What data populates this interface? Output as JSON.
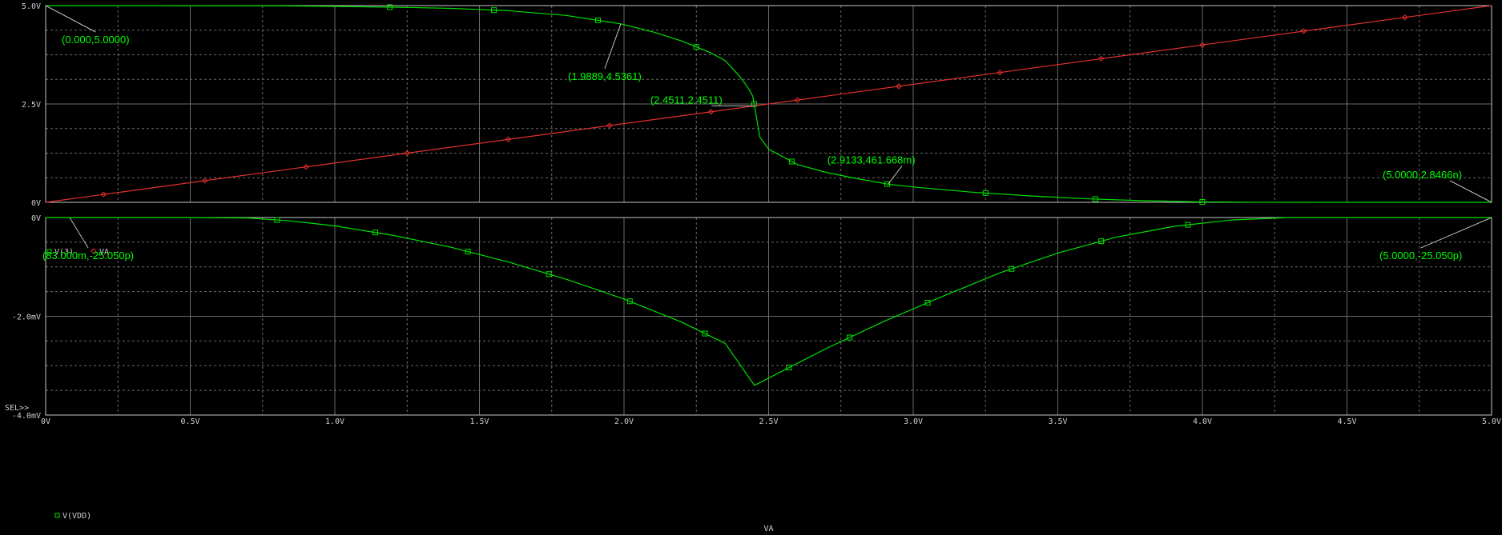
{
  "colors": {
    "background": "#000000",
    "grid": "#6a6a6a",
    "axis": "#c8c8c8",
    "green": "#00e000",
    "red": "#e03030",
    "annotation": "#00ff00"
  },
  "sel_marker": "SEL>>",
  "x_axis": {
    "label": "VA",
    "range": [
      0,
      5
    ],
    "ticks": [
      0,
      0.5,
      1,
      1.5,
      2,
      2.5,
      3,
      3.5,
      4,
      4.5,
      5
    ],
    "tick_labels": [
      "0V",
      "0.5V",
      "1.0V",
      "1.5V",
      "2.0V",
      "2.5V",
      "3.0V",
      "3.5V",
      "4.0V",
      "4.5V",
      "5.0V"
    ]
  },
  "chart_data": [
    {
      "type": "line",
      "ylim": [
        0,
        5
      ],
      "yticks": [
        0,
        2.5,
        5
      ],
      "ytick_labels": [
        "0V",
        "2.5V",
        "5.0V"
      ],
      "legend": "bottom-left",
      "series": [
        {
          "name": "V(3)",
          "marker": "square",
          "color": "#00e000",
          "x": [
            0,
            0.4,
            0.8,
            1.0,
            1.2,
            1.4,
            1.6,
            1.8,
            1.9889,
            2.1,
            2.2,
            2.3,
            2.35,
            2.4,
            2.43,
            2.445,
            2.4511,
            2.47,
            2.5,
            2.6,
            2.7,
            2.8,
            2.9133,
            3.0,
            3.2,
            3.4,
            3.6,
            3.8,
            4.0,
            4.2,
            4.5,
            5.0
          ],
          "y": [
            5.0,
            5.0,
            4.995,
            4.98,
            4.96,
            4.93,
            4.87,
            4.75,
            4.5361,
            4.33,
            4.1,
            3.8,
            3.6,
            3.2,
            2.9,
            2.7,
            2.4511,
            1.65,
            1.35,
            0.96,
            0.76,
            0.61,
            0.461668,
            0.39,
            0.26,
            0.165,
            0.09,
            0.04,
            0.01,
            0.001,
            1e-05,
            2.8466e-09
          ],
          "marker_x": [
            1.19,
            1.55,
            1.91,
            2.25,
            2.45,
            2.58,
            2.91,
            3.25,
            3.63,
            4.0
          ]
        },
        {
          "name": "VA",
          "marker": "diamond",
          "color": "#e03030",
          "x": [
            0,
            5
          ],
          "y": [
            0,
            5
          ],
          "marker_x": [
            0.2,
            0.55,
            0.9,
            1.25,
            1.6,
            1.95,
            2.3,
            2.6,
            2.95,
            3.3,
            3.65,
            4.0,
            4.35,
            4.7
          ]
        }
      ],
      "annotations": [
        {
          "text": "(0.000,5.0000)",
          "x": 0.0,
          "y": 5.0
        },
        {
          "text": "(1.9889,4.5361)",
          "x": 1.9889,
          "y": 4.5361
        },
        {
          "text": "(2.4511,2.4511)",
          "x": 2.4511,
          "y": 2.4511
        },
        {
          "text": "(2.9133,461.668m)",
          "x": 2.9133,
          "y": 0.461668
        },
        {
          "text": "(5.0000,2.8466n)",
          "x": 5.0,
          "y": 2.8466e-09
        }
      ]
    },
    {
      "type": "line",
      "ylim": [
        -4.0,
        0
      ],
      "yticks": [
        -4.0,
        -2.0,
        0
      ],
      "ytick_labels": [
        "-4.0mV",
        "-2.0mV",
        "0V"
      ],
      "y_unit": "mV",
      "legend": "bottom-left",
      "series": [
        {
          "name": "V(VDD)",
          "marker": "square",
          "color": "#00e000",
          "x": [
            0,
            0.083,
            0.5,
            0.7,
            0.85,
            1.0,
            1.2,
            1.4,
            1.6,
            1.8,
            2.0,
            2.2,
            2.35,
            2.4511,
            2.55,
            2.7,
            2.9,
            3.1,
            3.3,
            3.5,
            3.7,
            3.9,
            4.1,
            4.3,
            4.5,
            4.8,
            5.0
          ],
          "y": [
            0,
            0,
            0,
            -0.01,
            -0.07,
            -0.17,
            -0.36,
            -0.6,
            -0.9,
            -1.25,
            -1.65,
            -2.12,
            -2.55,
            -3.4,
            -3.1,
            -2.65,
            -2.1,
            -1.6,
            -1.12,
            -0.72,
            -0.4,
            -0.18,
            -0.05,
            0,
            0,
            0,
            0
          ],
          "marker_x": [
            0.8,
            1.14,
            1.46,
            1.74,
            2.02,
            2.28,
            2.57,
            2.78,
            3.05,
            3.34,
            3.65,
            3.95
          ]
        }
      ],
      "annotations": [
        {
          "text": "(83.000m,-25.050p)",
          "x": 0.083,
          "y": -2.505e-08
        },
        {
          "text": "(5.0000,-25.050p)",
          "x": 5.0,
          "y": -2.505e-08
        }
      ]
    }
  ]
}
